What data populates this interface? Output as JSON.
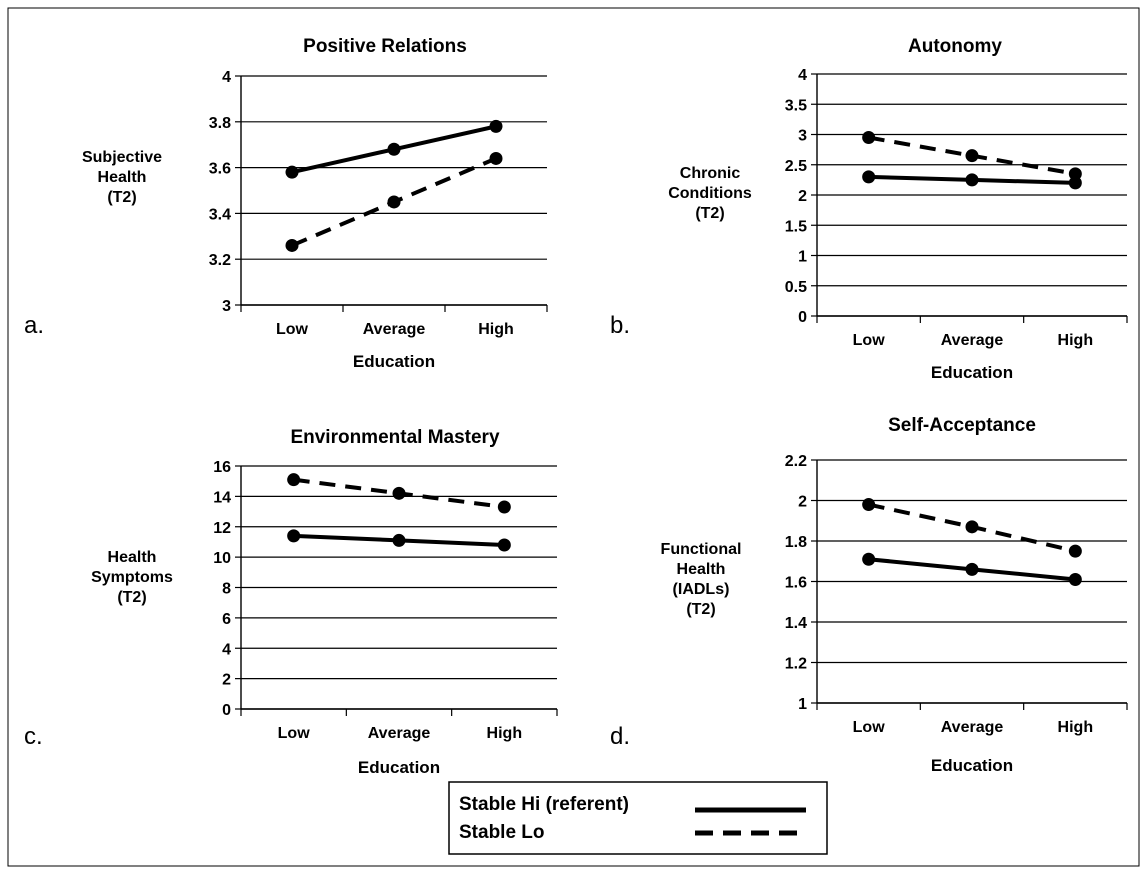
{
  "chart_data": [
    {
      "type": "line",
      "panel_label": "a.",
      "title": "Positive Relations",
      "xlabel": "Education",
      "ylabel": [
        "Subjective",
        "Health",
        "(T2)"
      ],
      "categories": [
        "Low",
        "Average",
        "High"
      ],
      "ylim": [
        3,
        4
      ],
      "yticks": [
        "3",
        "3.2",
        "3.4",
        "3.6",
        "3.8",
        "4"
      ],
      "grid": true,
      "series": [
        {
          "name": "Stable Hi (referent)",
          "style": "solid",
          "values": [
            3.58,
            3.68,
            3.78
          ]
        },
        {
          "name": "Stable Lo",
          "style": "dashed",
          "values": [
            3.26,
            3.45,
            3.64
          ]
        }
      ]
    },
    {
      "type": "line",
      "panel_label": "b.",
      "title": "Autonomy",
      "xlabel": "Education",
      "ylabel": [
        "Chronic",
        "Conditions",
        "(T2)"
      ],
      "categories": [
        "Low",
        "Average",
        "High"
      ],
      "ylim": [
        0,
        4
      ],
      "yticks": [
        "0",
        "0.5",
        "1",
        "1.5",
        "2",
        "2.5",
        "3",
        "3.5",
        "4"
      ],
      "grid": true,
      "series": [
        {
          "name": "Stable Hi (referent)",
          "style": "solid",
          "values": [
            2.3,
            2.25,
            2.2
          ]
        },
        {
          "name": "Stable Lo",
          "style": "dashed",
          "values": [
            2.95,
            2.65,
            2.35
          ]
        }
      ]
    },
    {
      "type": "line",
      "panel_label": "c.",
      "title": "Environmental  Mastery",
      "xlabel": "Education",
      "ylabel": [
        "Health",
        "Symptoms",
        "(T2)"
      ],
      "categories": [
        "Low",
        "Average",
        "High"
      ],
      "ylim": [
        0,
        16
      ],
      "yticks": [
        "0",
        "2",
        "4",
        "6",
        "8",
        "10",
        "12",
        "14",
        "16"
      ],
      "grid": true,
      "series": [
        {
          "name": "Stable Hi (referent)",
          "style": "solid",
          "values": [
            11.4,
            11.1,
            10.8
          ]
        },
        {
          "name": "Stable Lo",
          "style": "dashed",
          "values": [
            15.1,
            14.2,
            13.3
          ]
        }
      ]
    },
    {
      "type": "line",
      "panel_label": "d.",
      "title": "Self-Acceptance",
      "xlabel": "Education",
      "ylabel": [
        "Functional",
        "Health",
        "(IADLs)",
        "(T2)"
      ],
      "categories": [
        "Low",
        "Average",
        "High"
      ],
      "ylim": [
        1,
        2.2
      ],
      "yticks": [
        "1",
        "1.2",
        "1.4",
        "1.6",
        "1.8",
        "2",
        "2.2"
      ],
      "grid": true,
      "series": [
        {
          "name": "Stable Hi (referent)",
          "style": "solid",
          "values": [
            1.71,
            1.66,
            1.61
          ]
        },
        {
          "name": "Stable Lo",
          "style": "dashed",
          "values": [
            1.98,
            1.87,
            1.75
          ]
        }
      ]
    }
  ],
  "legend": {
    "placement": "bottom-center",
    "items": [
      {
        "label": "Stable Hi (referent)",
        "style": "solid"
      },
      {
        "label": "Stable Lo",
        "style": "dashed"
      }
    ]
  },
  "colors": {
    "line": "#000000",
    "grid": "#000000",
    "background": "#ffffff"
  }
}
